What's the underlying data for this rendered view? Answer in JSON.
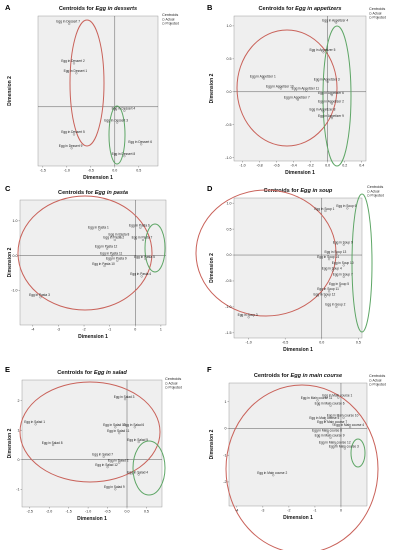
{
  "chart_data": [
    {
      "letter": "A",
      "type": "scatter",
      "title_prefix": "Centroids for ",
      "title_em": "Egg in desserts",
      "xlabel": "Dimension 1",
      "ylabel": "Dimension 2",
      "xlim": [
        -1.6,
        0.9
      ],
      "ylim": [
        -1.5,
        2.3
      ],
      "xticks": [
        "-1.5",
        "-1.0",
        "-0.5",
        "0.0",
        "0.5"
      ],
      "xtick_vals": [
        -1.5,
        -1.0,
        -0.5,
        0.0,
        0.5
      ],
      "yticks": [],
      "ytick_vals": [],
      "legend": {
        "title": "Centroids",
        "items": [
          "Actual",
          "Projected"
        ]
      },
      "points": [
        {
          "label": "Egg in Dessert 7",
          "x": -0.95,
          "y": 2.1
        },
        {
          "label": "Egg in Dessert 2",
          "x": -0.85,
          "y": 1.1
        },
        {
          "label": "Egg in Dessert 1",
          "x": -0.8,
          "y": 0.85
        },
        {
          "label": "Egg in Dessert 4",
          "x": 0.2,
          "y": -0.1
        },
        {
          "label": "Egg in Dessert 3",
          "x": 0.05,
          "y": -0.4
        },
        {
          "label": "Egg in Dessert 5",
          "x": -0.85,
          "y": -0.7
        },
        {
          "label": "Egg in Dessert 6",
          "x": 0.55,
          "y": -0.95
        },
        {
          "label": "Egg in Dessert 9",
          "x": -0.9,
          "y": -1.05
        },
        {
          "label": "Egg in Dessert 8",
          "x": 0.2,
          "y": -1.25
        }
      ]
    },
    {
      "letter": "B",
      "type": "scatter",
      "title_prefix": "Centroids for ",
      "title_em": "Egg in appetizers",
      "xlabel": "Dimension 1",
      "ylabel": "Dimension 2",
      "xlim": [
        -1.1,
        0.45
      ],
      "ylim": [
        -1.05,
        1.15
      ],
      "xticks": [
        "-1.0",
        "-0.8",
        "-0.6",
        "-0.4",
        "-0.2",
        "0.0",
        "0.2",
        "0.4"
      ],
      "xtick_vals": [
        -1.0,
        -0.8,
        -0.6,
        -0.4,
        -0.2,
        0.0,
        0.2,
        0.4
      ],
      "yticks": [
        "1.0",
        "0.5",
        "0.0",
        "-0.5",
        "-1.0"
      ],
      "ytick_vals": [
        1.0,
        0.5,
        0.0,
        -0.5,
        -1.0
      ],
      "legend": {
        "title": "Centroids",
        "items": [
          "Actual",
          "Projected"
        ]
      },
      "points": [
        {
          "label": "Egg in Appetizer 4",
          "x": 0.1,
          "y": 1.05
        },
        {
          "label": "Egg in Appetizer 5",
          "x": -0.05,
          "y": 0.6
        },
        {
          "label": "Egg in Appetizer 1",
          "x": -0.75,
          "y": 0.2
        },
        {
          "label": "Egg in Appetizer 3",
          "x": 0.0,
          "y": 0.15
        },
        {
          "label": "Egg in Appetizer 10",
          "x": -0.55,
          "y": 0.05
        },
        {
          "label": "Egg in Appetizer 11",
          "x": -0.25,
          "y": 0.02
        },
        {
          "label": "Egg in Appetizer 6",
          "x": 0.05,
          "y": -0.05
        },
        {
          "label": "Egg in Appetizer 7",
          "x": -0.35,
          "y": -0.12
        },
        {
          "label": "Egg in Appetizer 2",
          "x": 0.05,
          "y": -0.18
        },
        {
          "label": "Egg in Appetizer 8",
          "x": -0.05,
          "y": -0.3
        },
        {
          "label": "Egg in Appetizer 9",
          "x": 0.05,
          "y": -0.4
        }
      ]
    },
    {
      "letter": "C",
      "type": "scatter",
      "title_prefix": "Centroids for ",
      "title_em": "Egg in pasta",
      "xlabel": "Dimension 1",
      "ylabel": "Dimension 2",
      "xlim": [
        -4.5,
        1.2
      ],
      "ylim": [
        -2.0,
        1.6
      ],
      "xticks": [
        "-4",
        "-3",
        "-2",
        "-1",
        "0",
        "1"
      ],
      "xtick_vals": [
        -4,
        -3,
        -2,
        -1,
        0,
        1
      ],
      "yticks": [
        "1.0",
        "0.0",
        "-1.0"
      ],
      "ytick_vals": [
        1.0,
        0.0,
        -1.0
      ],
      "legend": {
        "title": "",
        "items": []
      },
      "points": [
        {
          "label": "Egg in Pasta 6",
          "x": 0.2,
          "y": 0.8
        },
        {
          "label": "Egg in Pasta 1",
          "x": -1.4,
          "y": 0.75
        },
        {
          "label": "Egg in Pasta 8",
          "x": -0.6,
          "y": 0.55
        },
        {
          "label": "Egg in Pasta 2",
          "x": -0.8,
          "y": 0.45
        },
        {
          "label": "Egg in Pasta 7",
          "x": 0.3,
          "y": 0.45
        },
        {
          "label": "Egg in Pasta 12",
          "x": -1.1,
          "y": 0.2
        },
        {
          "label": "Egg in Pasta 11",
          "x": -0.9,
          "y": 0.0
        },
        {
          "label": "Egg in Pasta 5",
          "x": 0.4,
          "y": -0.1
        },
        {
          "label": "Egg in Pasta 9",
          "x": -0.7,
          "y": -0.15
        },
        {
          "label": "Egg in Pasta 10",
          "x": -1.2,
          "y": -0.3
        },
        {
          "label": "Egg in Pasta 4",
          "x": 0.25,
          "y": -0.6
        },
        {
          "label": "Egg in Pasta 3",
          "x": -3.7,
          "y": -1.2
        }
      ]
    },
    {
      "letter": "D",
      "type": "scatter",
      "title_prefix": "Centroids for ",
      "title_em": "Egg in soup",
      "xlabel": "Dimension 1",
      "ylabel": "Dimension 2",
      "xlim": [
        -1.2,
        0.55
      ],
      "ylim": [
        -1.6,
        1.1
      ],
      "xticks": [
        "-1.0",
        "-0.5",
        "0.0",
        "0.5"
      ],
      "xtick_vals": [
        -1.0,
        -0.5,
        0.0,
        0.5
      ],
      "yticks": [
        "1.0",
        "0.5",
        "0.0",
        "-0.5",
        "-1.0",
        "-1.5"
      ],
      "ytick_vals": [
        1.0,
        0.5,
        0.0,
        -0.5,
        -1.0,
        -1.5
      ],
      "legend": {
        "title": "Centroids",
        "items": [
          "Actual",
          "Projected"
        ]
      },
      "points": [
        {
          "label": "Egg in Soup 6",
          "x": 0.35,
          "y": 0.9
        },
        {
          "label": "Egg in Soup 1",
          "x": 0.05,
          "y": 0.85
        },
        {
          "label": "Egg in Soup 9",
          "x": 0.3,
          "y": 0.2
        },
        {
          "label": "Egg in Soup 13",
          "x": 0.2,
          "y": 0.02
        },
        {
          "label": "Egg in Soup 14",
          "x": 0.1,
          "y": -0.08
        },
        {
          "label": "Egg in Soup 10",
          "x": 0.3,
          "y": -0.2
        },
        {
          "label": "Egg in Soup 4",
          "x": 0.15,
          "y": -0.3
        },
        {
          "label": "Egg in Soup 7",
          "x": 0.3,
          "y": -0.42
        },
        {
          "label": "Egg in Soup 5",
          "x": 0.25,
          "y": -0.6
        },
        {
          "label": "Egg in Soup 11",
          "x": 0.1,
          "y": -0.7
        },
        {
          "label": "Egg in Soup 12",
          "x": 0.05,
          "y": -0.8
        },
        {
          "label": "Egg in Soup 2",
          "x": 0.2,
          "y": -1.0
        },
        {
          "label": "Egg in Soup 3",
          "x": -1.0,
          "y": -1.2
        }
      ]
    },
    {
      "letter": "E",
      "type": "scatter",
      "title_prefix": "Centroids for ",
      "title_em": "Egg in salad",
      "xlabel": "Dimension 1",
      "ylabel": "Dimension 2",
      "xlim": [
        -2.7,
        0.9
      ],
      "ylim": [
        -1.6,
        2.7
      ],
      "xticks": [
        "-2.5",
        "-2.0",
        "-1.5",
        "-1.0",
        "-0.5",
        "0.0",
        "0.5"
      ],
      "xtick_vals": [
        -2.5,
        -2.0,
        -1.5,
        -1.0,
        -0.5,
        0.0,
        0.5
      ],
      "yticks": [
        "2",
        "1",
        "0",
        "-1"
      ],
      "ytick_vals": [
        2,
        1,
        0,
        -1
      ],
      "legend": {
        "title": "Centroids",
        "items": [
          "Actual",
          "Projected"
        ]
      },
      "points": [
        {
          "label": "Egg in Salad 3",
          "x": -0.05,
          "y": 2.05
        },
        {
          "label": "Egg in Salad 1",
          "x": -2.35,
          "y": 1.2
        },
        {
          "label": "Egg in Salad 10",
          "x": -0.3,
          "y": 1.1
        },
        {
          "label": "Egg in Salad 6",
          "x": 0.2,
          "y": 1.1
        },
        {
          "label": "Egg in Salad 11",
          "x": -0.2,
          "y": 0.9
        },
        {
          "label": "Egg in Salad 5",
          "x": 0.3,
          "y": 0.6
        },
        {
          "label": "Egg in Salad 8",
          "x": -1.9,
          "y": 0.5
        },
        {
          "label": "Egg in Salad 7",
          "x": -0.6,
          "y": 0.1
        },
        {
          "label": "Egg in Salad 2",
          "x": -0.2,
          "y": -0.1
        },
        {
          "label": "Egg in Salad 12",
          "x": -0.5,
          "y": -0.25
        },
        {
          "label": "Egg in Salad 4",
          "x": 0.3,
          "y": -0.5
        },
        {
          "label": "Egg in Salad 9",
          "x": -0.3,
          "y": -1.0
        }
      ]
    },
    {
      "letter": "F",
      "type": "scatter",
      "title_prefix": "Centroids for ",
      "title_em": "Egg in main course",
      "xlabel": "Dimension 1",
      "ylabel": "Dimension 2",
      "xlim": [
        -4.3,
        1.0
      ],
      "ylim": [
        -2.9,
        1.7
      ],
      "xticks": [
        "-4",
        "-3",
        "-2",
        "-1",
        "0"
      ],
      "xtick_vals": [
        -4,
        -3,
        -2,
        -1,
        0
      ],
      "yticks": [
        "1",
        "0",
        "-1",
        "-2"
      ],
      "ytick_vals": [
        1,
        0,
        -1,
        -2
      ],
      "legend": {
        "title": "Centroids",
        "items": [
          "Actual",
          "Projected"
        ]
      },
      "points": [
        {
          "label": "Egg in Main course 1",
          "x": -0.1,
          "y": 1.15
        },
        {
          "label": "Egg in Main course 11",
          "x": -0.9,
          "y": 1.05
        },
        {
          "label": "Egg in Main course 6",
          "x": -0.4,
          "y": 0.85
        },
        {
          "label": "Egg in Main course 10",
          "x": 0.1,
          "y": 0.4
        },
        {
          "label": "Egg in Main course 5",
          "x": -0.6,
          "y": 0.3
        },
        {
          "label": "Egg in Main course 7",
          "x": -0.3,
          "y": 0.15
        },
        {
          "label": "Egg in Main course 4",
          "x": 0.35,
          "y": 0.05
        },
        {
          "label": "Egg in Main course 8",
          "x": -0.5,
          "y": -0.15
        },
        {
          "label": "Egg in Main course 9",
          "x": -0.4,
          "y": -0.35
        },
        {
          "label": "Egg in Main course 12",
          "x": -0.2,
          "y": -0.6
        },
        {
          "label": "Egg in Main course 3",
          "x": 0.15,
          "y": -0.75
        },
        {
          "label": "Egg in Main course 2",
          "x": -2.6,
          "y": -1.75
        }
      ]
    }
  ]
}
